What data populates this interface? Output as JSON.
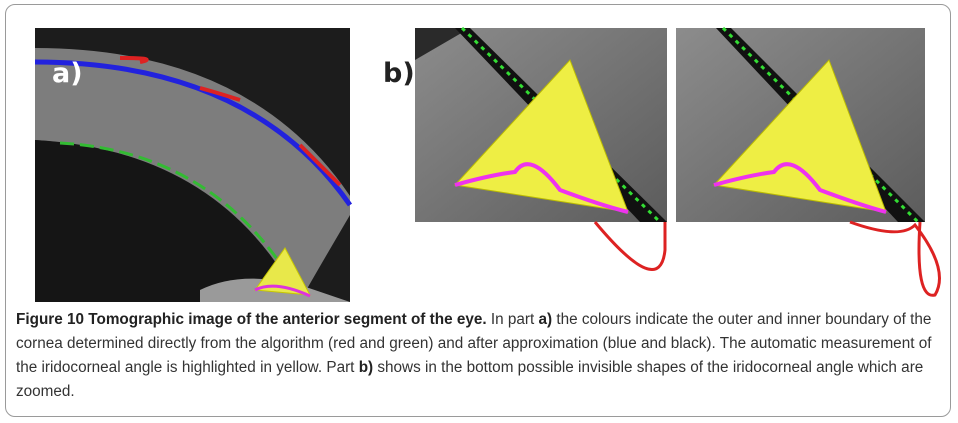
{
  "figure": {
    "panel_labels": [
      "a)",
      "b)"
    ],
    "caption": {
      "label": "Figure 10",
      "title": "Tomographic image of the anterior segment of the eye.",
      "body": [
        "In part ",
        "a)",
        " the colours indicate the outer and inner boundary of the cornea determined directly from the algorithm (red and green) and after approximation (blue and black). The automatic measurement of the iridocorneal angle is highlighted in yellow. Part ",
        "b)",
        " shows in the bottom possible invisible shapes of the iridocorneal angle which are zoomed."
      ]
    }
  }
}
